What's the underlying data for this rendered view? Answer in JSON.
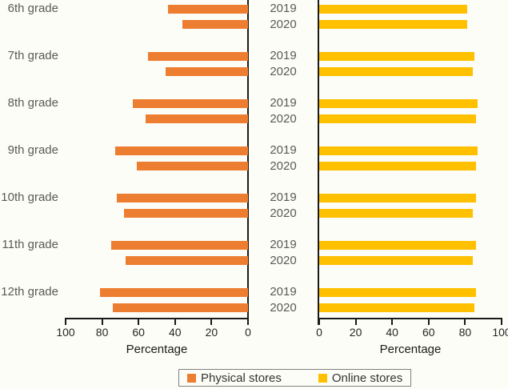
{
  "chart_data": {
    "type": "bar",
    "orientation": "horizontal",
    "layout": "back-to-back-panels",
    "categories": [
      "6th grade",
      "7th grade",
      "8th grade",
      "9th grade",
      "10th grade",
      "11th grade",
      "12th grade"
    ],
    "years": [
      "2019",
      "2020"
    ],
    "panels": [
      {
        "name": "Physical stores",
        "side": "left",
        "color": "#ED7D31",
        "xlabel": "Percentage",
        "xlim": [
          0,
          100
        ],
        "axis_ticks": [
          100,
          80,
          60,
          40,
          20,
          0
        ],
        "series": [
          {
            "name": "2019",
            "values": [
              44,
              55,
              63,
              73,
              72,
              75,
              81
            ]
          },
          {
            "name": "2020",
            "values": [
              36,
              45,
              56,
              61,
              68,
              67,
              74
            ]
          }
        ]
      },
      {
        "name": "Online stores",
        "side": "right",
        "color": "#FFC000",
        "xlabel": "Percentage",
        "xlim": [
          0,
          100
        ],
        "axis_ticks": [
          0,
          20,
          40,
          60,
          80,
          100
        ],
        "series": [
          {
            "name": "2019",
            "values": [
              81,
              85,
              87,
              87,
              86,
              86,
              86
            ]
          },
          {
            "name": "2020",
            "values": [
              81,
              84,
              86,
              86,
              84,
              84,
              85
            ]
          }
        ]
      }
    ],
    "grid": false,
    "legend_position": "bottom-center"
  },
  "legend": {
    "items": [
      {
        "label": "Physical stores",
        "color": "#ED7D31"
      },
      {
        "label": "Online stores",
        "color": "#FFC000"
      }
    ]
  },
  "colors": {
    "background": "#FDFDF7",
    "axis": "#1A1A1A",
    "category_text": "#595959",
    "tick_text": "#262626",
    "legend_border": "#7F7F7F"
  }
}
